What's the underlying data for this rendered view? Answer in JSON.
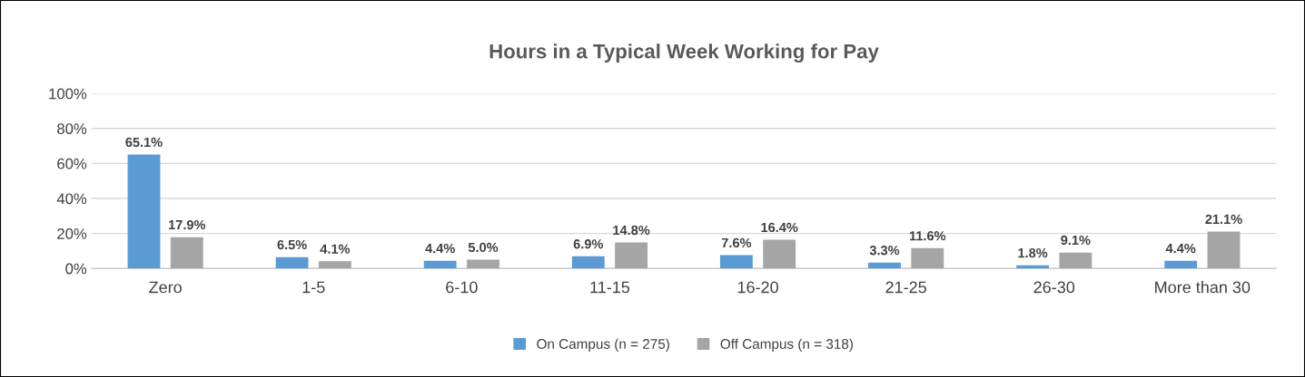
{
  "chart_data": {
    "type": "bar",
    "title": "Hours in a Typical Week Working for Pay",
    "categories": [
      "Zero",
      "1-5",
      "6-10",
      "11-15",
      "16-20",
      "21-25",
      "26-30",
      "More than 30"
    ],
    "series": [
      {
        "name": "On Campus (n = 275)",
        "color": "#5b9bd5",
        "values": [
          65.1,
          6.5,
          4.4,
          6.9,
          7.6,
          3.3,
          1.8,
          4.4
        ],
        "value_labels": [
          "65.1%",
          "6.5%",
          "4.4%",
          "6.9%",
          "7.6%",
          "3.3%",
          "1.8%",
          "4.4%"
        ]
      },
      {
        "name": "Off Campus (n = 318)",
        "color": "#a5a5a5",
        "values": [
          17.9,
          4.1,
          5.0,
          14.8,
          16.4,
          11.6,
          9.1,
          21.1
        ],
        "value_labels": [
          "17.9%",
          "4.1%",
          "5.0%",
          "14.8%",
          "16.4%",
          "11.6%",
          "9.1%",
          "21.1%"
        ]
      }
    ],
    "ylim": [
      0,
      100
    ],
    "yticks": [
      {
        "value": 0,
        "label": "0%"
      },
      {
        "value": 20,
        "label": "20%"
      },
      {
        "value": 40,
        "label": "40%"
      },
      {
        "value": 60,
        "label": "60%"
      },
      {
        "value": 80,
        "label": "80%"
      },
      {
        "value": 100,
        "label": "100%"
      }
    ],
    "grid": "y",
    "legend": "bottom"
  }
}
